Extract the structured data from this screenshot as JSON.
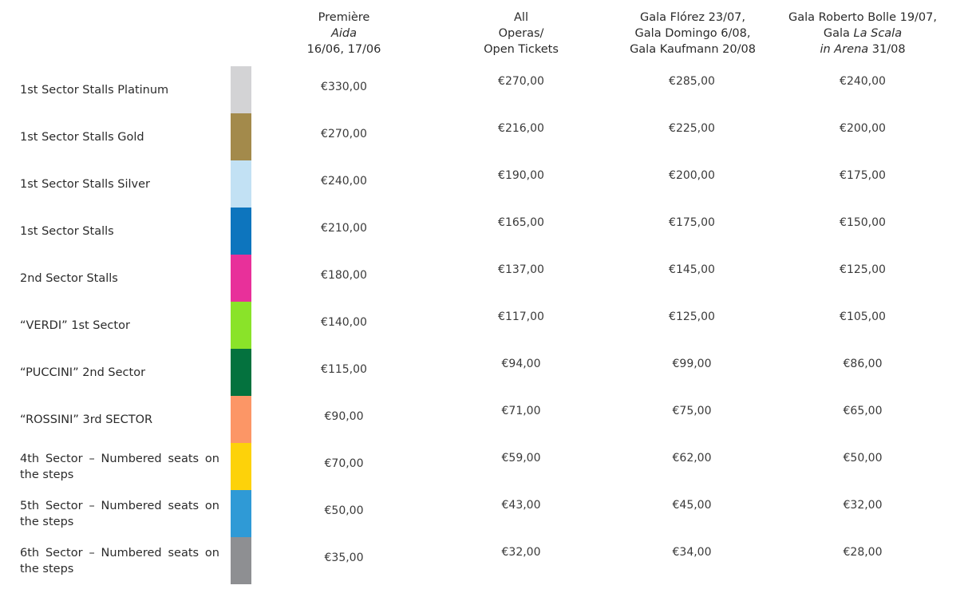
{
  "headers": {
    "col1": {
      "line1": "Première",
      "line2_italic": "Aida",
      "line3": "16/06, 17/06"
    },
    "col2": {
      "line1": "All",
      "line2": "Operas/",
      "line3": "Open Tickets"
    },
    "col3": {
      "line1": "Gala Flórez 23/07,",
      "line2": "Gala Domingo 6/08,",
      "line3": "Gala Kaufmann 20/08"
    },
    "col4": {
      "line1": "Gala Roberto Bolle 19/07,",
      "line2_pre": "Gala ",
      "line2_italic": "La Scala",
      "line3_italic": "in Arena",
      "line3_post": " 31/08"
    }
  },
  "rows": [
    {
      "label": "1st Sector Stalls Platinum",
      "color": "#d3d3d5",
      "p1": "€330,00",
      "p2": "€270,00",
      "p3": "€285,00",
      "p4": "€240,00"
    },
    {
      "label": "1st Sector Stalls Gold",
      "color": "#a38a4b",
      "p1": "€270,00",
      "p2": "€216,00",
      "p3": "€225,00",
      "p4": "€200,00"
    },
    {
      "label": "1st Sector Stalls Silver",
      "color": "#c2e1f4",
      "p1": "€240,00",
      "p2": "€190,00",
      "p3": "€200,00",
      "p4": "€175,00"
    },
    {
      "label": "1st Sector Stalls",
      "color": "#0d75be",
      "p1": "€210,00",
      "p2": "€165,00",
      "p3": "€175,00",
      "p4": "€150,00"
    },
    {
      "label": "2nd Sector Stalls",
      "color": "#e8309a",
      "p1": "€180,00",
      "p2": "€137,00",
      "p3": "€145,00",
      "p4": "€125,00"
    },
    {
      "label": "“VERDI” 1st Sector",
      "color": "#8ae329",
      "p1": "€140,00",
      "p2": "€117,00",
      "p3": "€125,00",
      "p4": "€105,00"
    },
    {
      "label": "“PUCCINI” 2nd Sector",
      "color": "#04723e",
      "p1": "€115,00",
      "p2": "€94,00",
      "p3": "€99,00",
      "p4": "€86,00"
    },
    {
      "label": "“ROSSINI” 3rd SECTOR",
      "color": "#fc9666",
      "p1": "€90,00",
      "p2": "€71,00",
      "p3": "€75,00",
      "p4": "€65,00"
    },
    {
      "label": "4th Sector – Numbered seats on the steps",
      "color": "#fdd20a",
      "p1": "€70,00",
      "p2": "€59,00",
      "p3": "€62,00",
      "p4": "€50,00"
    },
    {
      "label": "5th Sector – Numbered seats on the steps",
      "color": "#2f9ad6",
      "p1": "€50,00",
      "p2": "€43,00",
      "p3": "€45,00",
      "p4": "€32,00"
    },
    {
      "label": "6th Sector – Numbered seats on the steps",
      "color": "#8e8f92",
      "p1": "€35,00",
      "p2": "€32,00",
      "p3": "€34,00",
      "p4": "€28,00"
    }
  ]
}
